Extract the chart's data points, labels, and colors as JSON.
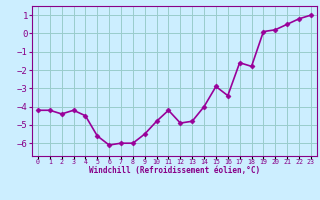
{
  "x": [
    0,
    1,
    2,
    3,
    4,
    5,
    6,
    7,
    8,
    9,
    10,
    11,
    12,
    13,
    14,
    15,
    16,
    17,
    18,
    19,
    20,
    21,
    22,
    23
  ],
  "y": [
    -4.2,
    -4.2,
    -4.4,
    -4.2,
    -4.5,
    -5.6,
    -6.1,
    -6.0,
    -6.0,
    -5.5,
    -4.8,
    -4.2,
    -4.9,
    -4.8,
    -4.0,
    -2.9,
    -3.4,
    -1.6,
    -1.8,
    0.1,
    0.2,
    0.5,
    0.8,
    1.0
  ],
  "line_color": "#990099",
  "marker": "D",
  "markersize": 2.5,
  "bg_color": "#cceeff",
  "grid_color": "#99cccc",
  "xlabel": "Windchill (Refroidissement éolien,°C)",
  "ylabel": "",
  "xlim_left": -0.5,
  "xlim_right": 23.5,
  "ylim": [
    -6.7,
    1.5
  ],
  "yticks": [
    1,
    0,
    -1,
    -2,
    -3,
    -4,
    -5,
    -6
  ],
  "xtick_labels": [
    "0",
    "1",
    "2",
    "3",
    "4",
    "5",
    "6",
    "7",
    "8",
    "9",
    "10",
    "11",
    "12",
    "13",
    "14",
    "15",
    "16",
    "17",
    "18",
    "19",
    "20",
    "21",
    "22",
    "23"
  ],
  "tick_color": "#880088",
  "label_color": "#880088",
  "linewidth": 1.2,
  "xlabel_fontsize": 5.5,
  "ytick_fontsize": 6.5,
  "xtick_fontsize": 4.8
}
